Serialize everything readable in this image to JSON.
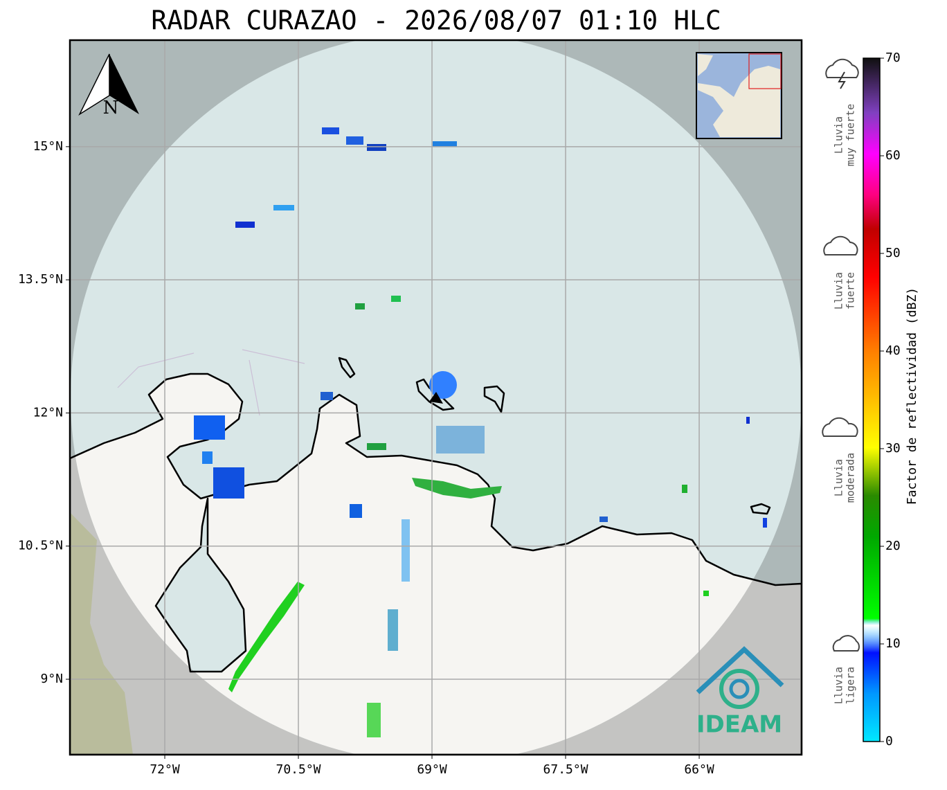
{
  "title": "RADAR CURAZAO - 2026/08/07 01:10 HLC",
  "map": {
    "xlim": [
      -73.065,
      -64.85
    ],
    "ylim": [
      8.15,
      16.2
    ],
    "lon_ticks": [
      {
        "value": -72,
        "label": "72°W"
      },
      {
        "value": -70.5,
        "label": "70.5°W"
      },
      {
        "value": -69,
        "label": "69°W"
      },
      {
        "value": -67.5,
        "label": "67.5°W"
      },
      {
        "value": -66,
        "label": "66°W"
      }
    ],
    "lat_ticks": [
      {
        "value": 15,
        "label": "15°N"
      },
      {
        "value": 13.5,
        "label": "13.5°N"
      },
      {
        "value": 12,
        "label": "12°N"
      },
      {
        "value": 10.5,
        "label": "10.5°N"
      },
      {
        "value": 9,
        "label": "9°N"
      }
    ],
    "north_label": "N",
    "logo_text": "IDEAM"
  },
  "colorbar": {
    "label": "Factor de reflectividad (dBZ)",
    "lim": [
      0,
      70
    ],
    "ticks": [
      0,
      10,
      20,
      30,
      40,
      50,
      60,
      70
    ]
  },
  "legend": [
    {
      "lines": [
        "Lluvia",
        "muy fuerte"
      ]
    },
    {
      "lines": [
        "Lluvia",
        "fuerte"
      ]
    },
    {
      "lines": [
        "Lluvia",
        "moderada"
      ]
    },
    {
      "lines": [
        "Lluvia",
        "ligera"
      ]
    }
  ]
}
